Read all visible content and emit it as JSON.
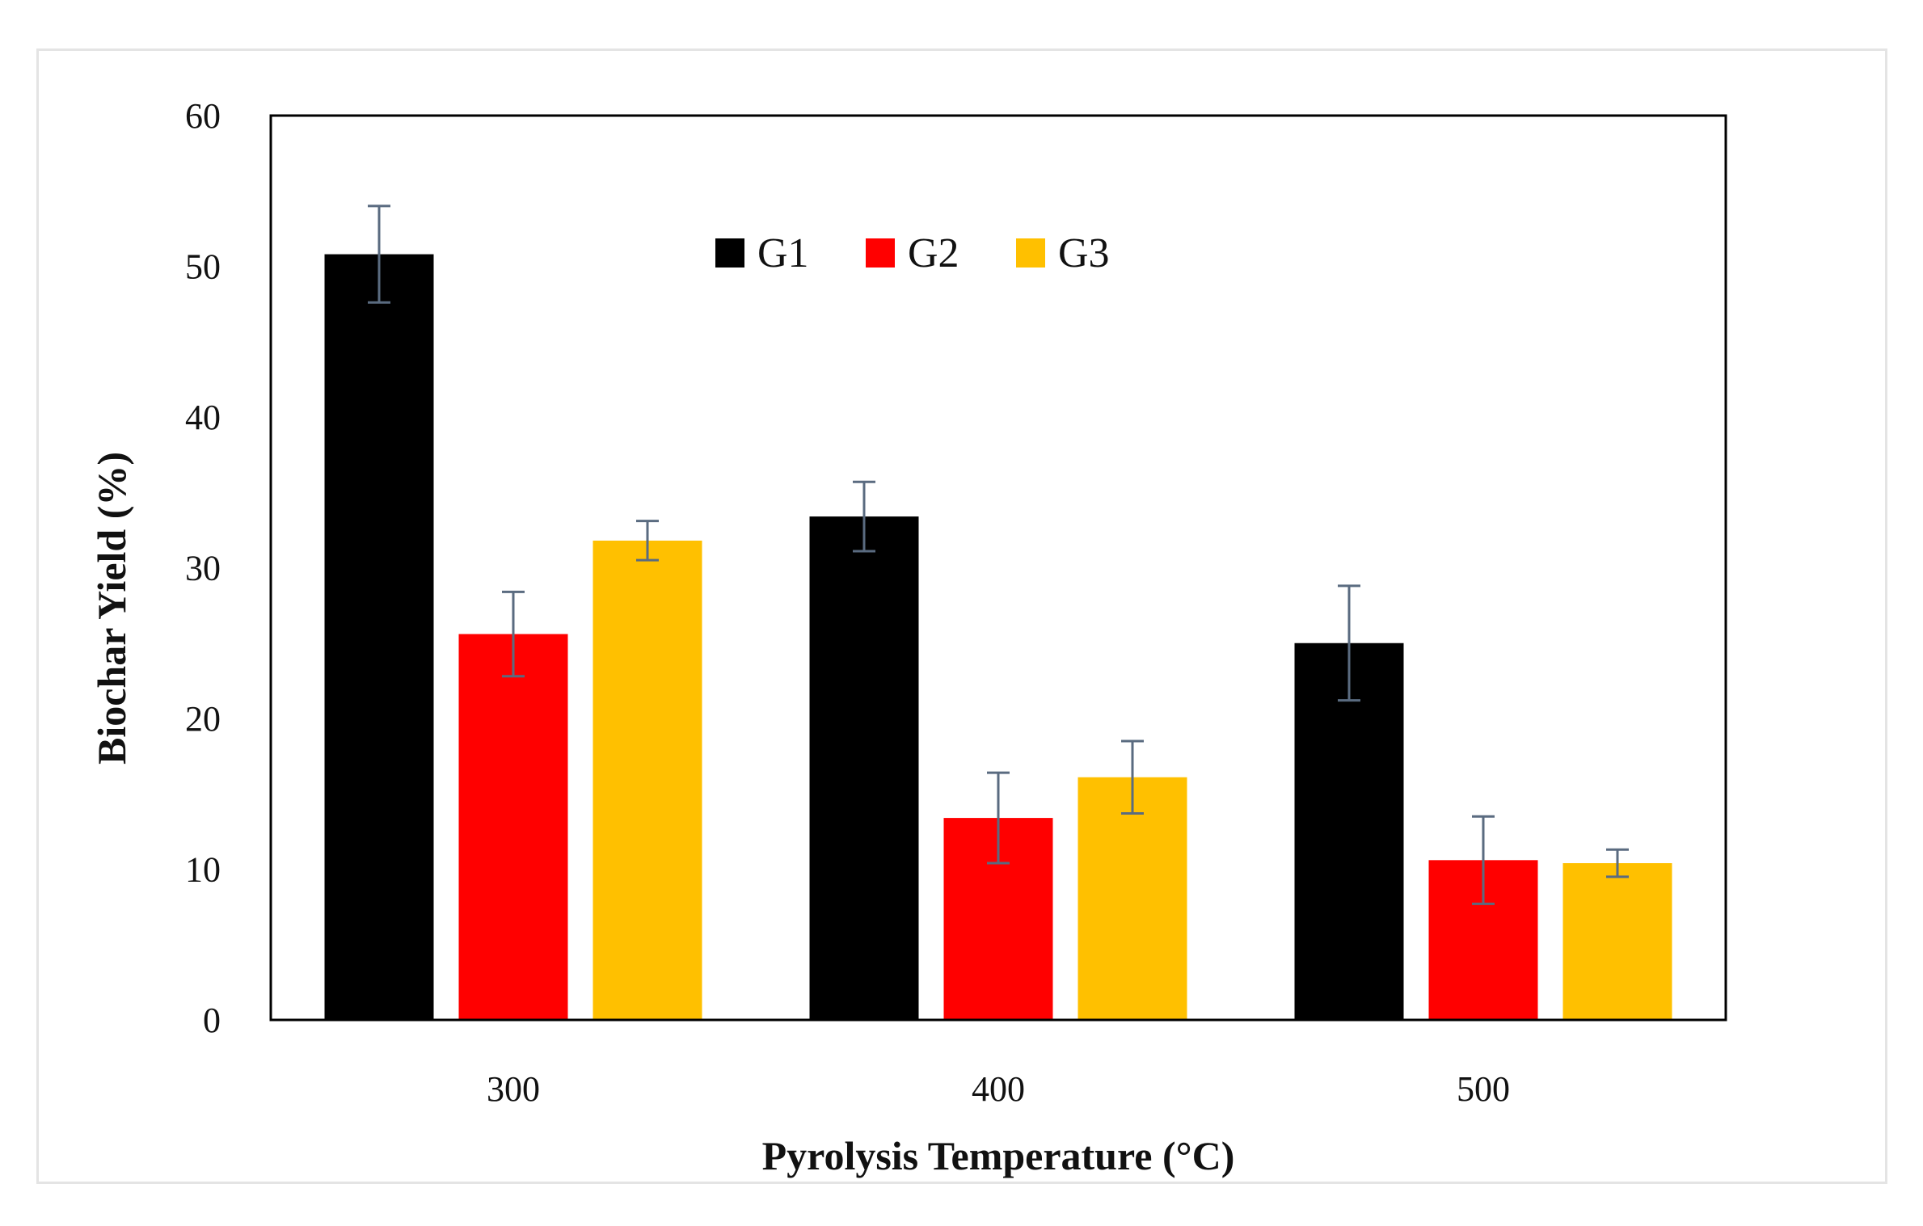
{
  "chart_data": {
    "type": "bar",
    "title": "",
    "xlabel": "Pyrolysis Temperature (°C)",
    "ylabel": "Biochar Yield (%)",
    "categories": [
      "300",
      "400",
      "500"
    ],
    "ylim": [
      0,
      60
    ],
    "yticks": [
      0,
      10,
      20,
      30,
      40,
      50,
      60
    ],
    "grid": false,
    "legend_position": "top-center",
    "series": [
      {
        "name": "G1",
        "color": "#000000",
        "values": [
          50.8,
          33.4,
          25.0
        ],
        "errors": [
          3.2,
          2.3,
          3.8
        ]
      },
      {
        "name": "G2",
        "color": "#ff0000",
        "values": [
          25.6,
          13.4,
          10.6
        ],
        "errors": [
          2.8,
          3.0,
          2.9
        ]
      },
      {
        "name": "G3",
        "color": "#ffc000",
        "values": [
          31.8,
          16.1,
          10.4
        ],
        "errors": [
          1.3,
          2.4,
          0.9
        ]
      }
    ],
    "error_bar_color": "#5a6b80"
  }
}
